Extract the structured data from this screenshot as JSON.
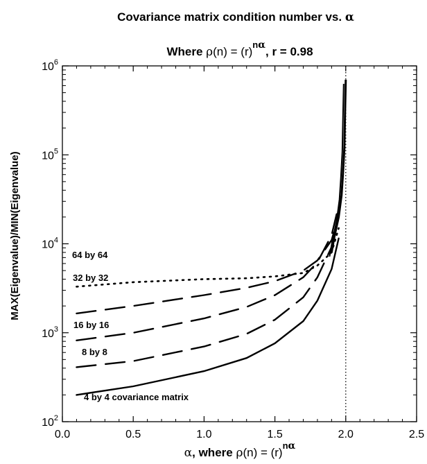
{
  "chart_data": {
    "type": "line",
    "title": {
      "prefix": "Covariance matrix condition number vs. ",
      "symbol": "α"
    },
    "subtitle": {
      "where": "Where ",
      "rho": "ρ",
      "paren_n": "(n) = (r)",
      "sup_n": "n",
      "sup_alpha": "α",
      "r_part": ", r = 0.98"
    },
    "xlabel": {
      "alpha": "α",
      "where": ", where ",
      "rho": "ρ",
      "paren_n": "(n) = (r)",
      "sup_n": "n",
      "sup_alpha": "α"
    },
    "ylabel": "MAX(Eigenvalue)/MIN(Eigenvalue)",
    "xlim": [
      0.0,
      2.5
    ],
    "ylim": [
      100,
      1000000
    ],
    "yscale": "log",
    "x_ticks": [
      "0.0",
      "0.5",
      "1.0",
      "1.5",
      "2.0",
      "2.5"
    ],
    "y_ticks": [
      {
        "base": "10",
        "exp": "2",
        "value": 100
      },
      {
        "base": "10",
        "exp": "3",
        "value": 1000
      },
      {
        "base": "10",
        "exp": "4",
        "value": 10000
      },
      {
        "base": "10",
        "exp": "5",
        "value": 100000
      },
      {
        "base": "10",
        "exp": "6",
        "value": 1000000
      }
    ],
    "grid": false,
    "vline_x": 2.0,
    "series": [
      {
        "name": "4 by 4 covariance matrix",
        "style": "solid",
        "x": [
          0.1,
          0.5,
          1.0,
          1.3,
          1.5,
          1.7,
          1.8,
          1.9,
          1.95
        ],
        "y": [
          200,
          250,
          370,
          520,
          760,
          1350,
          2300,
          5200,
          11500
        ]
      },
      {
        "name": "8 by 8",
        "style": "dashed",
        "x": [
          0.1,
          0.5,
          1.0,
          1.3,
          1.5,
          1.7,
          1.8,
          1.9,
          1.95
        ],
        "y": [
          410,
          480,
          700,
          970,
          1400,
          2500,
          4200,
          9200,
          20000
        ]
      },
      {
        "name": "16 by 16",
        "style": "dashed",
        "x": [
          0.1,
          0.5,
          1.0,
          1.3,
          1.5,
          1.7,
          1.8,
          1.9,
          1.95
        ],
        "y": [
          820,
          1000,
          1450,
          1950,
          2650,
          4200,
          6200,
          12500,
          27000
        ]
      },
      {
        "name": "32 by 32",
        "style": "dashed",
        "x": [
          0.1,
          0.5,
          1.0,
          1.3,
          1.5,
          1.7,
          1.8,
          1.9,
          1.95
        ],
        "y": [
          1650,
          2000,
          2650,
          3200,
          3800,
          5000,
          6500,
          11000,
          21000
        ]
      },
      {
        "name": "64 by 64",
        "style": "dotted",
        "x": [
          0.1,
          0.5,
          1.0,
          1.3,
          1.5,
          1.7,
          1.8,
          1.9,
          1.95
        ],
        "y": [
          3300,
          3700,
          4000,
          4100,
          4300,
          4700,
          5700,
          8000,
          15000
        ]
      }
    ],
    "near_two": {
      "x": [
        1.9,
        1.92,
        1.95,
        1.97,
        1.98,
        1.99,
        1.995,
        2.0
      ],
      "y": [
        8000,
        12000,
        20000,
        35000,
        60000,
        120000,
        300000,
        700000
      ]
    }
  }
}
